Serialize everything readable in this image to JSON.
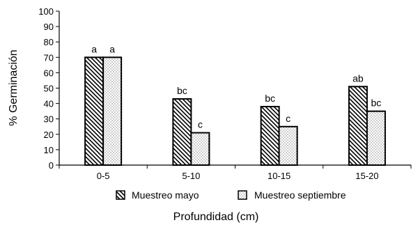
{
  "chart_data": {
    "type": "bar",
    "categories": [
      "0-5",
      "5-10",
      "10-15",
      "15-20"
    ],
    "series": [
      {
        "name": "Muestreo mayo",
        "values": [
          70,
          43,
          38,
          51
        ],
        "labels": [
          "a",
          "bc",
          "bc",
          "ab"
        ],
        "pattern": "diagonal-hatch"
      },
      {
        "name": "Muestreo septiembre",
        "values": [
          70,
          21,
          25,
          35
        ],
        "labels": [
          "a",
          "c",
          "c",
          "bc"
        ],
        "pattern": "dots"
      }
    ],
    "title": "",
    "xlabel": "Profundidad (cm)",
    "ylabel": "% Germinación",
    "ylim": [
      0,
      100
    ],
    "yticks": [
      0,
      10,
      20,
      30,
      40,
      50,
      60,
      70,
      80,
      90,
      100
    ],
    "grid": false,
    "legend_position": "bottom"
  }
}
